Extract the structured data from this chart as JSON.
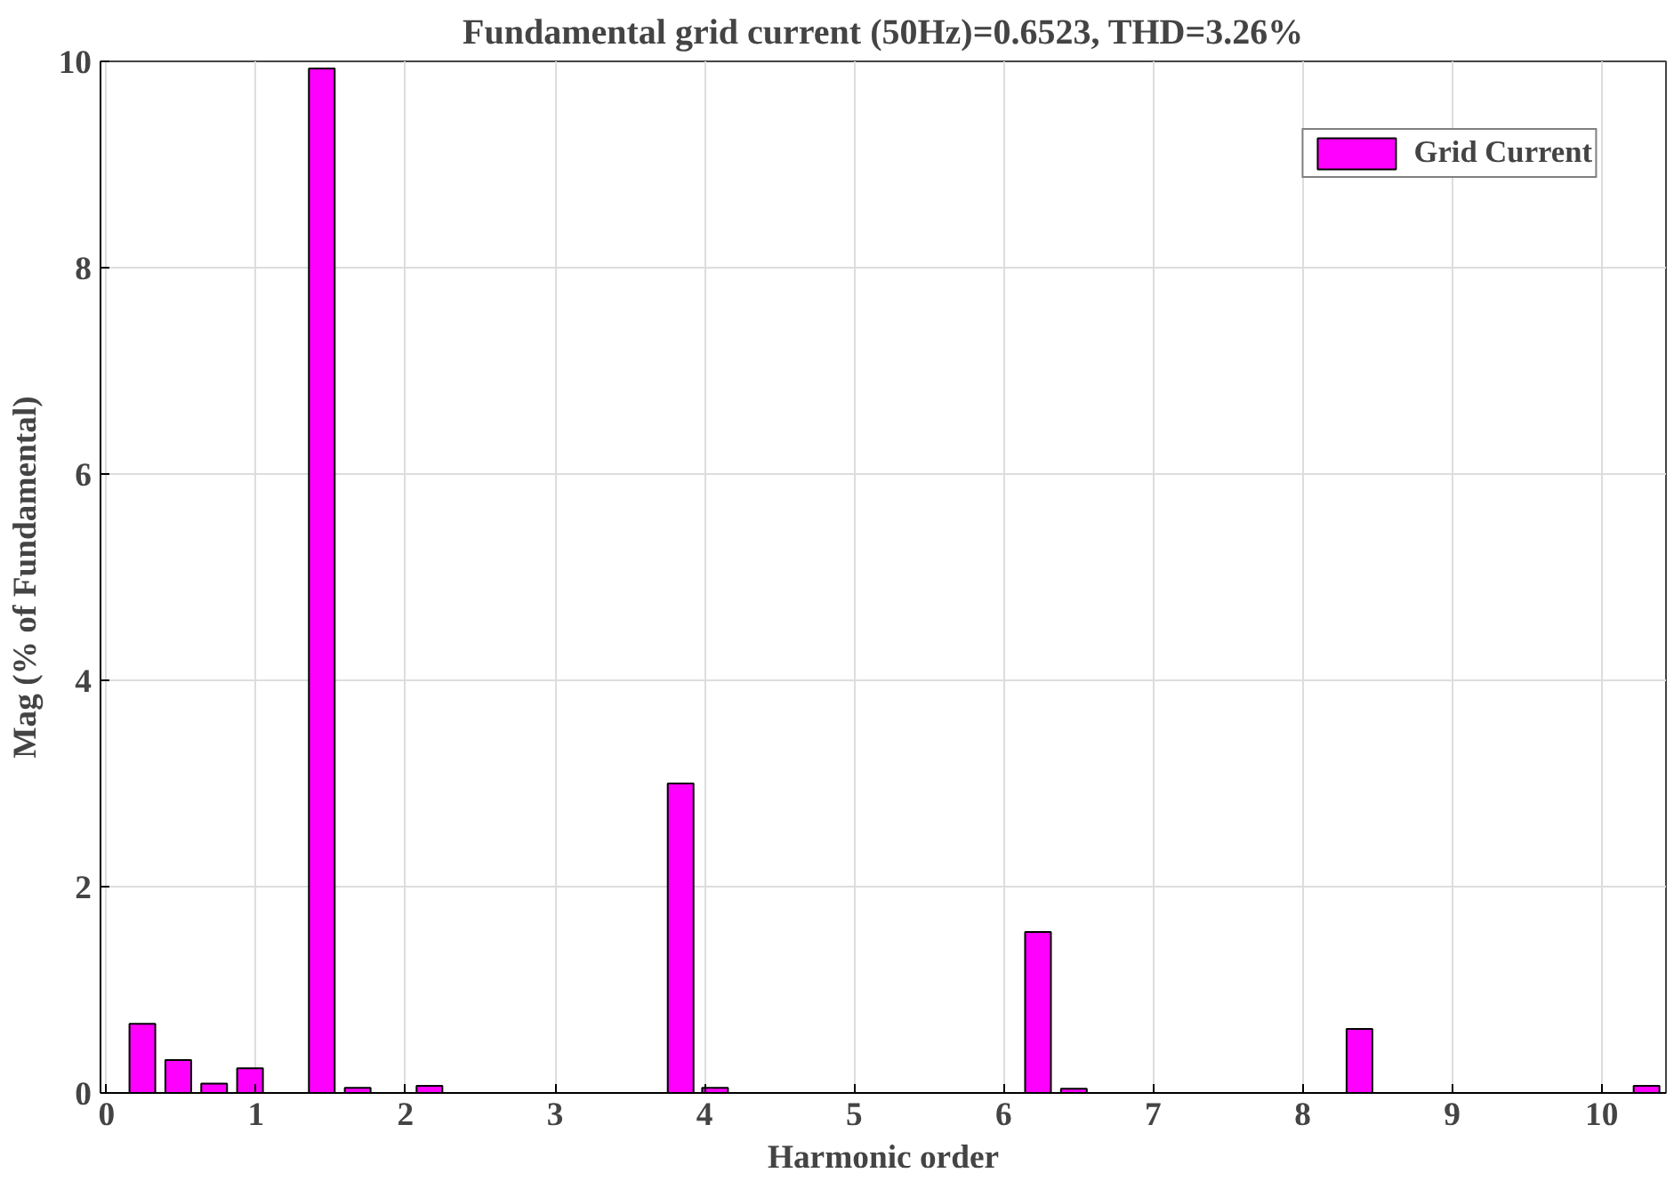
{
  "chart_data": {
    "type": "bar",
    "title": "Fundamental grid current (50Hz)=0.6523, THD=3.26%",
    "xlabel": "Harmonic order",
    "ylabel": "Mag (% of Fundamental)",
    "x": [
      0.24,
      0.48,
      0.72,
      0.96,
      1.44,
      1.68,
      2.16,
      3.84,
      4.07,
      6.23,
      6.47,
      6.71,
      8.38,
      9.82,
      10.3
    ],
    "series": [
      {
        "name": "Grid Current",
        "color": "#ff00ff",
        "values": [
          0.67,
          0.32,
          0.09,
          0.24,
          9.93,
          0.05,
          0.07,
          3.0,
          0.05,
          1.56,
          0.04,
          null,
          0.62,
          null,
          0.07
        ]
      }
    ],
    "xlim": [
      -0.04,
      10.43
    ],
    "ylim": [
      0,
      10
    ],
    "xticks": [
      0,
      1,
      2,
      3,
      4,
      5,
      6,
      7,
      8,
      9,
      10
    ],
    "yticks": [
      0,
      2,
      4,
      6,
      8,
      10
    ],
    "grid": true,
    "legend": "top right"
  }
}
